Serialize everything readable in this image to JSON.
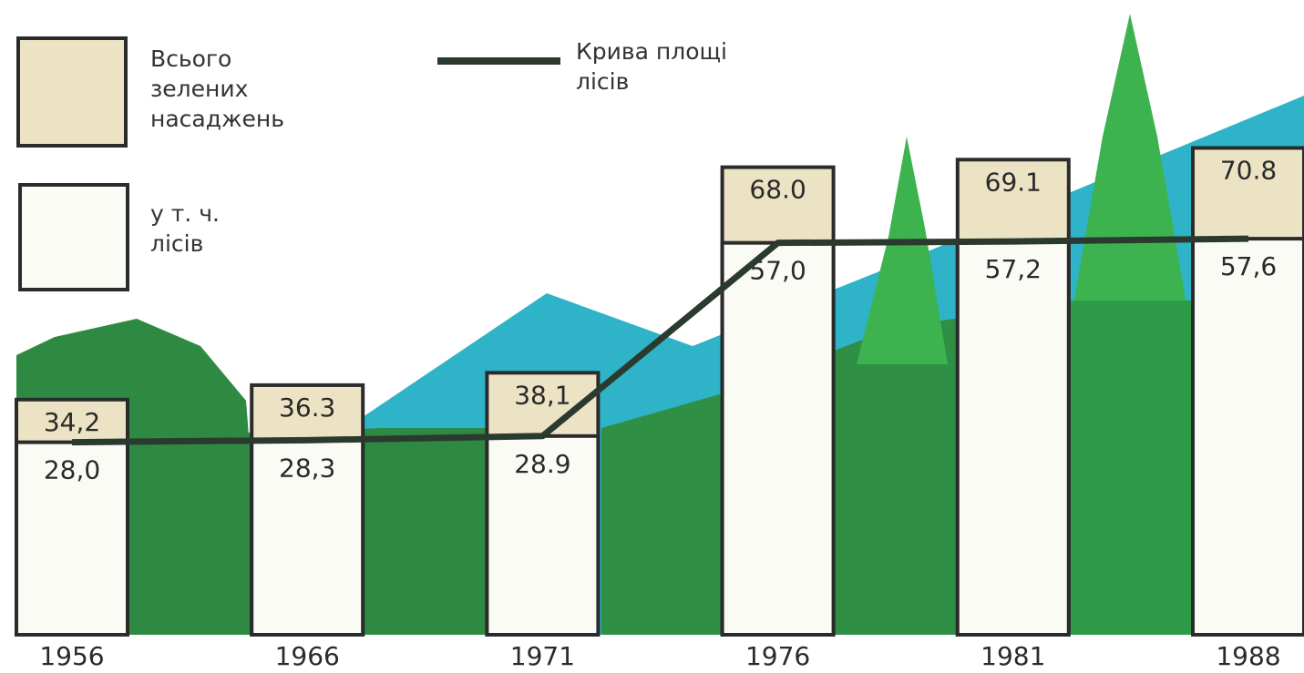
{
  "chart_data": {
    "type": "bar",
    "categories": [
      "1956",
      "1966",
      "1971",
      "1976",
      "1981",
      "1988"
    ],
    "series": [
      {
        "name": "Всього зелених насаджень",
        "color": "#ece3c4",
        "values": [
          34.2,
          36.3,
          38.1,
          68.0,
          69.1,
          70.8
        ],
        "value_labels": [
          "34,2",
          "36.3",
          "38,1",
          "68.0",
          "69.1",
          "70.8"
        ]
      },
      {
        "name": "у т. ч. лісів",
        "color": "#fbfbf6",
        "values": [
          28.0,
          28.3,
          28.9,
          57.0,
          57.2,
          57.6
        ],
        "value_labels": [
          "28,0",
          "28,3",
          "28.9",
          "57,0",
          "57,2",
          "57,6"
        ]
      }
    ],
    "line": {
      "name": "Крива площі лісів",
      "color": "#2b3a2e"
    },
    "ylim": [
      0,
      90
    ]
  }
}
